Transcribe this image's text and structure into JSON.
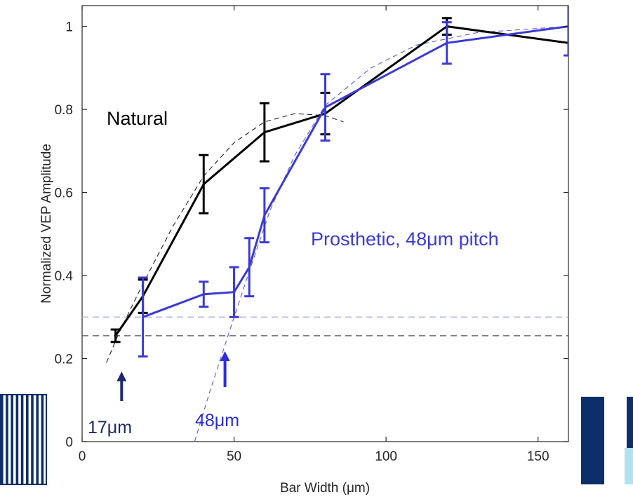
{
  "chart_data": {
    "type": "line",
    "xlabel": "Bar Width (μm)",
    "ylabel": "Normalized VEP Amplitude",
    "xlim": [
      0,
      160
    ],
    "ylim": [
      0,
      1.05
    ],
    "xticks": [
      {
        "value": 0,
        "label": "0"
      },
      {
        "value": 50,
        "label": "50"
      },
      {
        "value": 100,
        "label": "100"
      },
      {
        "value": 150,
        "label": "150"
      }
    ],
    "yticks": [
      {
        "value": 0,
        "label": "0"
      },
      {
        "value": 0.2,
        "label": "0.2"
      },
      {
        "value": 0.4,
        "label": "0.4"
      },
      {
        "value": 0.6,
        "label": "0.6"
      },
      {
        "value": 0.8,
        "label": "0.8"
      },
      {
        "value": 1,
        "label": "1"
      }
    ],
    "grid": false,
    "series": [
      {
        "name": "Natural",
        "color": "#000000",
        "points": [
          {
            "x": 11,
            "y": 0.255,
            "err": 0.015
          },
          {
            "x": 20,
            "y": 0.35,
            "err": 0.04
          },
          {
            "x": 40,
            "y": 0.62,
            "err": 0.07
          },
          {
            "x": 60,
            "y": 0.745,
            "err": 0.07
          },
          {
            "x": 80,
            "y": 0.79,
            "err": 0.05
          },
          {
            "x": 120,
            "y": 1.0,
            "err": 0.02
          },
          {
            "x": 160,
            "y": 0.96,
            "err": 0.0
          }
        ]
      },
      {
        "name": "Prosthetic, 48μm pitch",
        "color": "#3a3ad6",
        "points": [
          {
            "x": 20,
            "y": 0.3,
            "err": 0.095
          },
          {
            "x": 40,
            "y": 0.355,
            "err": 0.03
          },
          {
            "x": 50,
            "y": 0.36,
            "err": 0.06
          },
          {
            "x": 55,
            "y": 0.42,
            "err": 0.07
          },
          {
            "x": 60,
            "y": 0.545,
            "err": 0.065
          },
          {
            "x": 80,
            "y": 0.805,
            "err": 0.08
          },
          {
            "x": 120,
            "y": 0.96,
            "err": 0.05
          },
          {
            "x": 160,
            "y": 1.0,
            "err": 0.07
          }
        ]
      }
    ],
    "fits": [
      {
        "color": "#222222",
        "points": [
          [
            8,
            0.19
          ],
          [
            12,
            0.26
          ],
          [
            20,
            0.38
          ],
          [
            30,
            0.52
          ],
          [
            40,
            0.64
          ],
          [
            50,
            0.72
          ],
          [
            60,
            0.77
          ],
          [
            70,
            0.79
          ],
          [
            80,
            0.785
          ],
          [
            86,
            0.77
          ]
        ]
      },
      {
        "color": "#5a5ae0",
        "points": [
          [
            37,
            0.0
          ],
          [
            42,
            0.12
          ],
          [
            48,
            0.255
          ],
          [
            55,
            0.41
          ],
          [
            62,
            0.56
          ],
          [
            70,
            0.69
          ],
          [
            80,
            0.81
          ],
          [
            95,
            0.9
          ],
          [
            110,
            0.955
          ],
          [
            130,
            0.985
          ],
          [
            160,
            1.0
          ]
        ]
      }
    ],
    "thresholds": [
      {
        "y": 0.3,
        "color": "#a8a8f0"
      },
      {
        "y": 0.255,
        "color": "#555555"
      }
    ],
    "annotations": {
      "natural_label": "Natural",
      "prosthetic_label": "Prosthetic, 48μm pitch",
      "natural_threshold": {
        "label": "17μm",
        "x": 13,
        "color": "#1e2a6e"
      },
      "prosthetic_threshold": {
        "label": "48μm",
        "x": 47,
        "color": "#2b2be0"
      }
    },
    "colors": {
      "stripe_dark": "#0c2f6b",
      "stripe_light": "#aee3f2"
    }
  }
}
